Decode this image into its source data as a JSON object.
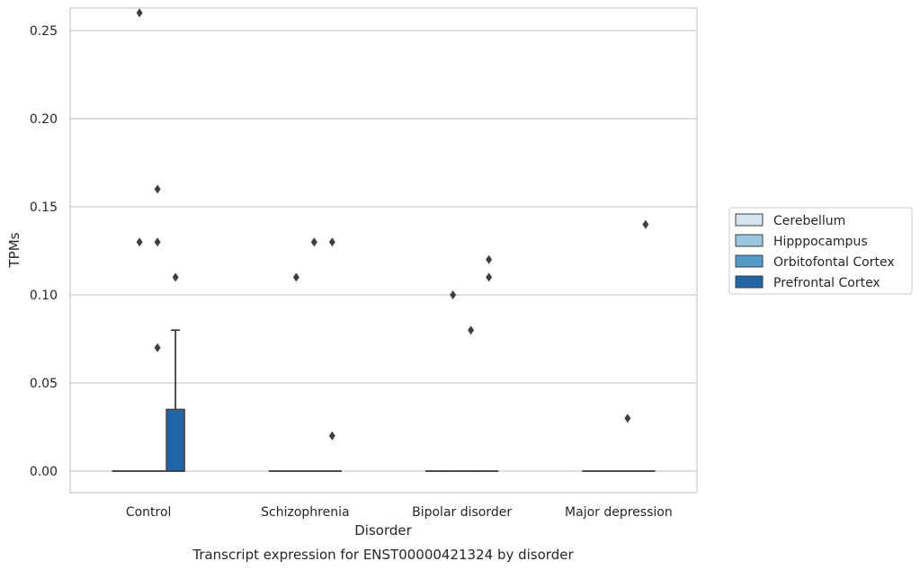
{
  "chart_data": {
    "type": "box",
    "categories": [
      "Control",
      "Schizophrenia",
      "Bipolar disorder",
      "Major depression"
    ],
    "xlabel": "Disorder",
    "ylabel": "TPMs",
    "caption": "Transcript expression for ENST00000421324 by disorder",
    "ylim": [
      -0.0125,
      0.2725
    ],
    "yticks": [
      0.0,
      0.05,
      0.1,
      0.15,
      0.2,
      0.25
    ],
    "ytick_labels": [
      "0.00",
      "0.05",
      "0.10",
      "0.15",
      "0.20",
      "0.25"
    ],
    "grid": "horizontal",
    "legend_placement": "right",
    "series": [
      {
        "name": "Cerebellum",
        "color": "#d6e4f1",
        "boxes": [
          {
            "category": "Control",
            "q1": 0,
            "median": 0,
            "q3": 0,
            "whisker_low": 0,
            "whisker_high": 0,
            "outliers": []
          },
          {
            "category": "Schizophrenia",
            "q1": 0,
            "median": 0,
            "q3": 0,
            "whisker_low": 0,
            "whisker_high": 0,
            "outliers": []
          },
          {
            "category": "Bipolar disorder",
            "q1": 0,
            "median": 0,
            "q3": 0,
            "whisker_low": 0,
            "whisker_high": 0,
            "outliers": []
          },
          {
            "category": "Major depression",
            "q1": 0,
            "median": 0,
            "q3": 0,
            "whisker_low": 0,
            "whisker_high": 0,
            "outliers": []
          }
        ]
      },
      {
        "name": "Hipppocampus",
        "color": "#9ac5df",
        "boxes": [
          {
            "category": "Control",
            "q1": 0,
            "median": 0,
            "q3": 0,
            "whisker_low": 0,
            "whisker_high": 0,
            "outliers": [
              0.26,
              0.13
            ]
          },
          {
            "category": "Schizophrenia",
            "q1": 0,
            "median": 0,
            "q3": 0,
            "whisker_low": 0,
            "whisker_high": 0,
            "outliers": [
              0.11
            ]
          },
          {
            "category": "Bipolar disorder",
            "q1": 0,
            "median": 0,
            "q3": 0,
            "whisker_low": 0,
            "whisker_high": 0,
            "outliers": [
              0.1
            ]
          },
          {
            "category": "Major depression",
            "q1": 0,
            "median": 0,
            "q3": 0,
            "whisker_low": 0,
            "whisker_high": 0,
            "outliers": []
          }
        ]
      },
      {
        "name": "Orbitofontal Cortex",
        "color": "#5599c8",
        "boxes": [
          {
            "category": "Control",
            "q1": 0,
            "median": 0,
            "q3": 0,
            "whisker_low": 0,
            "whisker_high": 0,
            "outliers": [
              0.16,
              0.13,
              0.07
            ]
          },
          {
            "category": "Schizophrenia",
            "q1": 0,
            "median": 0,
            "q3": 0,
            "whisker_low": 0,
            "whisker_high": 0,
            "outliers": [
              0.13
            ]
          },
          {
            "category": "Bipolar disorder",
            "q1": 0,
            "median": 0,
            "q3": 0,
            "whisker_low": 0,
            "whisker_high": 0,
            "outliers": [
              0.08
            ]
          },
          {
            "category": "Major depression",
            "q1": 0,
            "median": 0,
            "q3": 0,
            "whisker_low": 0,
            "whisker_high": 0,
            "outliers": [
              0.03
            ]
          }
        ]
      },
      {
        "name": "Prefrontal Cortex",
        "color": "#2366a8",
        "boxes": [
          {
            "category": "Control",
            "q1": 0,
            "median": 0,
            "q3": 0.035,
            "whisker_low": 0,
            "whisker_high": 0.08,
            "outliers": [
              0.11
            ]
          },
          {
            "category": "Schizophrenia",
            "q1": 0,
            "median": 0,
            "q3": 0,
            "whisker_low": 0,
            "whisker_high": 0,
            "outliers": [
              0.13,
              0.02
            ]
          },
          {
            "category": "Bipolar disorder",
            "q1": 0,
            "median": 0,
            "q3": 0,
            "whisker_low": 0,
            "whisker_high": 0,
            "outliers": [
              0.12,
              0.11
            ]
          },
          {
            "category": "Major depression",
            "q1": 0,
            "median": 0,
            "q3": 0,
            "whisker_low": 0,
            "whisker_high": 0,
            "outliers": [
              0.14
            ]
          }
        ]
      }
    ]
  }
}
